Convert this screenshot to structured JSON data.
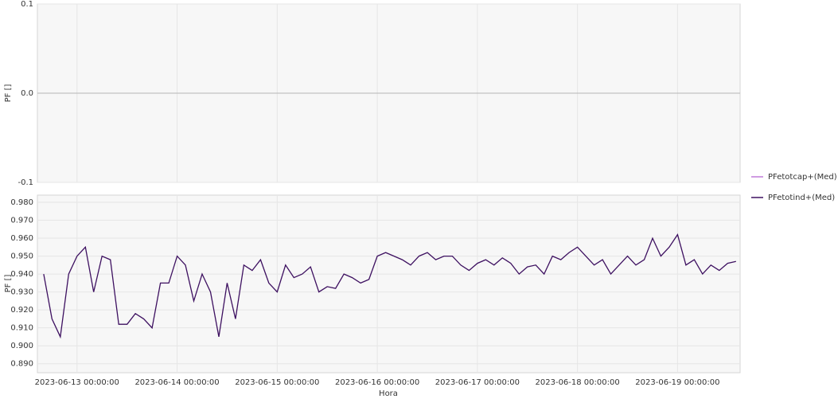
{
  "chart_data": [
    {
      "type": "line",
      "y_label": "PF []",
      "ylim": [
        -0.1,
        0.1
      ],
      "yticks": [
        -0.1,
        {
          "value": 0,
          "label": "0.0"
        },
        0.1
      ],
      "grid": true,
      "series": [
        {
          "name": "PFetotcap+(Med) []",
          "color": "#c07ad8",
          "values": []
        }
      ]
    },
    {
      "type": "line",
      "x_label": "Hora",
      "y_label": "PF []",
      "grid": true,
      "legend": "right",
      "xlim": [
        "2023-06-12 14:30:00",
        "2023-06-19 15:00:00"
      ],
      "xticks": [
        "2023-06-13 00:00:00",
        "2023-06-14 00:00:00",
        "2023-06-15 00:00:00",
        "2023-06-16 00:00:00",
        "2023-06-17 00:00:00",
        "2023-06-18 00:00:00",
        "2023-06-19 00:00:00"
      ],
      "ylim": [
        0.885,
        0.984
      ],
      "yticks": [
        {
          "value": 0.89,
          "label": "0.890"
        },
        {
          "value": 0.9,
          "label": "0.900"
        },
        {
          "value": 0.91,
          "label": "0.910"
        },
        {
          "value": 0.92,
          "label": "0.920"
        },
        {
          "value": 0.93,
          "label": "0.930"
        },
        {
          "value": 0.94,
          "label": "0.940"
        },
        {
          "value": 0.95,
          "label": "0.950"
        },
        {
          "value": 0.96,
          "label": "0.960"
        },
        {
          "value": 0.97,
          "label": "0.970"
        },
        {
          "value": 0.98,
          "label": "0.980"
        }
      ],
      "x": [
        "2023-06-12 16:00:00",
        "2023-06-12 18:00:00",
        "2023-06-12 20:00:00",
        "2023-06-12 22:00:00",
        "2023-06-13 00:00:00",
        "2023-06-13 02:00:00",
        "2023-06-13 04:00:00",
        "2023-06-13 06:00:00",
        "2023-06-13 08:00:00",
        "2023-06-13 10:00:00",
        "2023-06-13 12:00:00",
        "2023-06-13 14:00:00",
        "2023-06-13 16:00:00",
        "2023-06-13 18:00:00",
        "2023-06-13 20:00:00",
        "2023-06-13 22:00:00",
        "2023-06-14 00:00:00",
        "2023-06-14 02:00:00",
        "2023-06-14 04:00:00",
        "2023-06-14 06:00:00",
        "2023-06-14 08:00:00",
        "2023-06-14 10:00:00",
        "2023-06-14 12:00:00",
        "2023-06-14 14:00:00",
        "2023-06-14 16:00:00",
        "2023-06-14 18:00:00",
        "2023-06-14 20:00:00",
        "2023-06-14 22:00:00",
        "2023-06-15 00:00:00",
        "2023-06-15 02:00:00",
        "2023-06-15 04:00:00",
        "2023-06-15 06:00:00",
        "2023-06-15 08:00:00",
        "2023-06-15 10:00:00",
        "2023-06-15 12:00:00",
        "2023-06-15 14:00:00",
        "2023-06-15 16:00:00",
        "2023-06-15 18:00:00",
        "2023-06-15 20:00:00",
        "2023-06-15 22:00:00",
        "2023-06-16 00:00:00",
        "2023-06-16 02:00:00",
        "2023-06-16 04:00:00",
        "2023-06-16 06:00:00",
        "2023-06-16 08:00:00",
        "2023-06-16 10:00:00",
        "2023-06-16 12:00:00",
        "2023-06-16 14:00:00",
        "2023-06-16 16:00:00",
        "2023-06-16 18:00:00",
        "2023-06-16 20:00:00",
        "2023-06-16 22:00:00",
        "2023-06-17 00:00:00",
        "2023-06-17 02:00:00",
        "2023-06-17 04:00:00",
        "2023-06-17 06:00:00",
        "2023-06-17 08:00:00",
        "2023-06-17 10:00:00",
        "2023-06-17 12:00:00",
        "2023-06-17 14:00:00",
        "2023-06-17 16:00:00",
        "2023-06-17 18:00:00",
        "2023-06-17 20:00:00",
        "2023-06-17 22:00:00",
        "2023-06-18 00:00:00",
        "2023-06-18 02:00:00",
        "2023-06-18 04:00:00",
        "2023-06-18 06:00:00",
        "2023-06-18 08:00:00",
        "2023-06-18 10:00:00",
        "2023-06-18 12:00:00",
        "2023-06-18 14:00:00",
        "2023-06-18 16:00:00",
        "2023-06-18 18:00:00",
        "2023-06-18 20:00:00",
        "2023-06-18 22:00:00",
        "2023-06-19 00:00:00",
        "2023-06-19 02:00:00",
        "2023-06-19 04:00:00",
        "2023-06-19 06:00:00",
        "2023-06-19 08:00:00",
        "2023-06-19 10:00:00",
        "2023-06-19 12:00:00",
        "2023-06-19 14:00:00"
      ],
      "series": [
        {
          "name": "PFetotind+(Med) []",
          "color": "#3d1060",
          "values": [
            0.94,
            0.915,
            0.905,
            0.94,
            0.95,
            0.955,
            0.93,
            0.95,
            0.948,
            0.912,
            0.912,
            0.918,
            0.915,
            0.91,
            0.935,
            0.935,
            0.95,
            0.945,
            0.925,
            0.94,
            0.93,
            0.905,
            0.935,
            0.915,
            0.945,
            0.942,
            0.948,
            0.935,
            0.93,
            0.945,
            0.938,
            0.94,
            0.944,
            0.93,
            0.933,
            0.932,
            0.94,
            0.938,
            0.935,
            0.937,
            0.95,
            0.952,
            0.95,
            0.948,
            0.945,
            0.95,
            0.952,
            0.948,
            0.95,
            0.95,
            0.945,
            0.942,
            0.946,
            0.948,
            0.945,
            0.949,
            0.946,
            0.94,
            0.944,
            0.945,
            0.94,
            0.95,
            0.948,
            0.952,
            0.955,
            0.95,
            0.945,
            0.948,
            0.94,
            0.945,
            0.95,
            0.945,
            0.948,
            0.96,
            0.95,
            0.955,
            0.962,
            0.945,
            0.948,
            0.94,
            0.945,
            0.942,
            0.946,
            0.947
          ]
        }
      ]
    }
  ]
}
